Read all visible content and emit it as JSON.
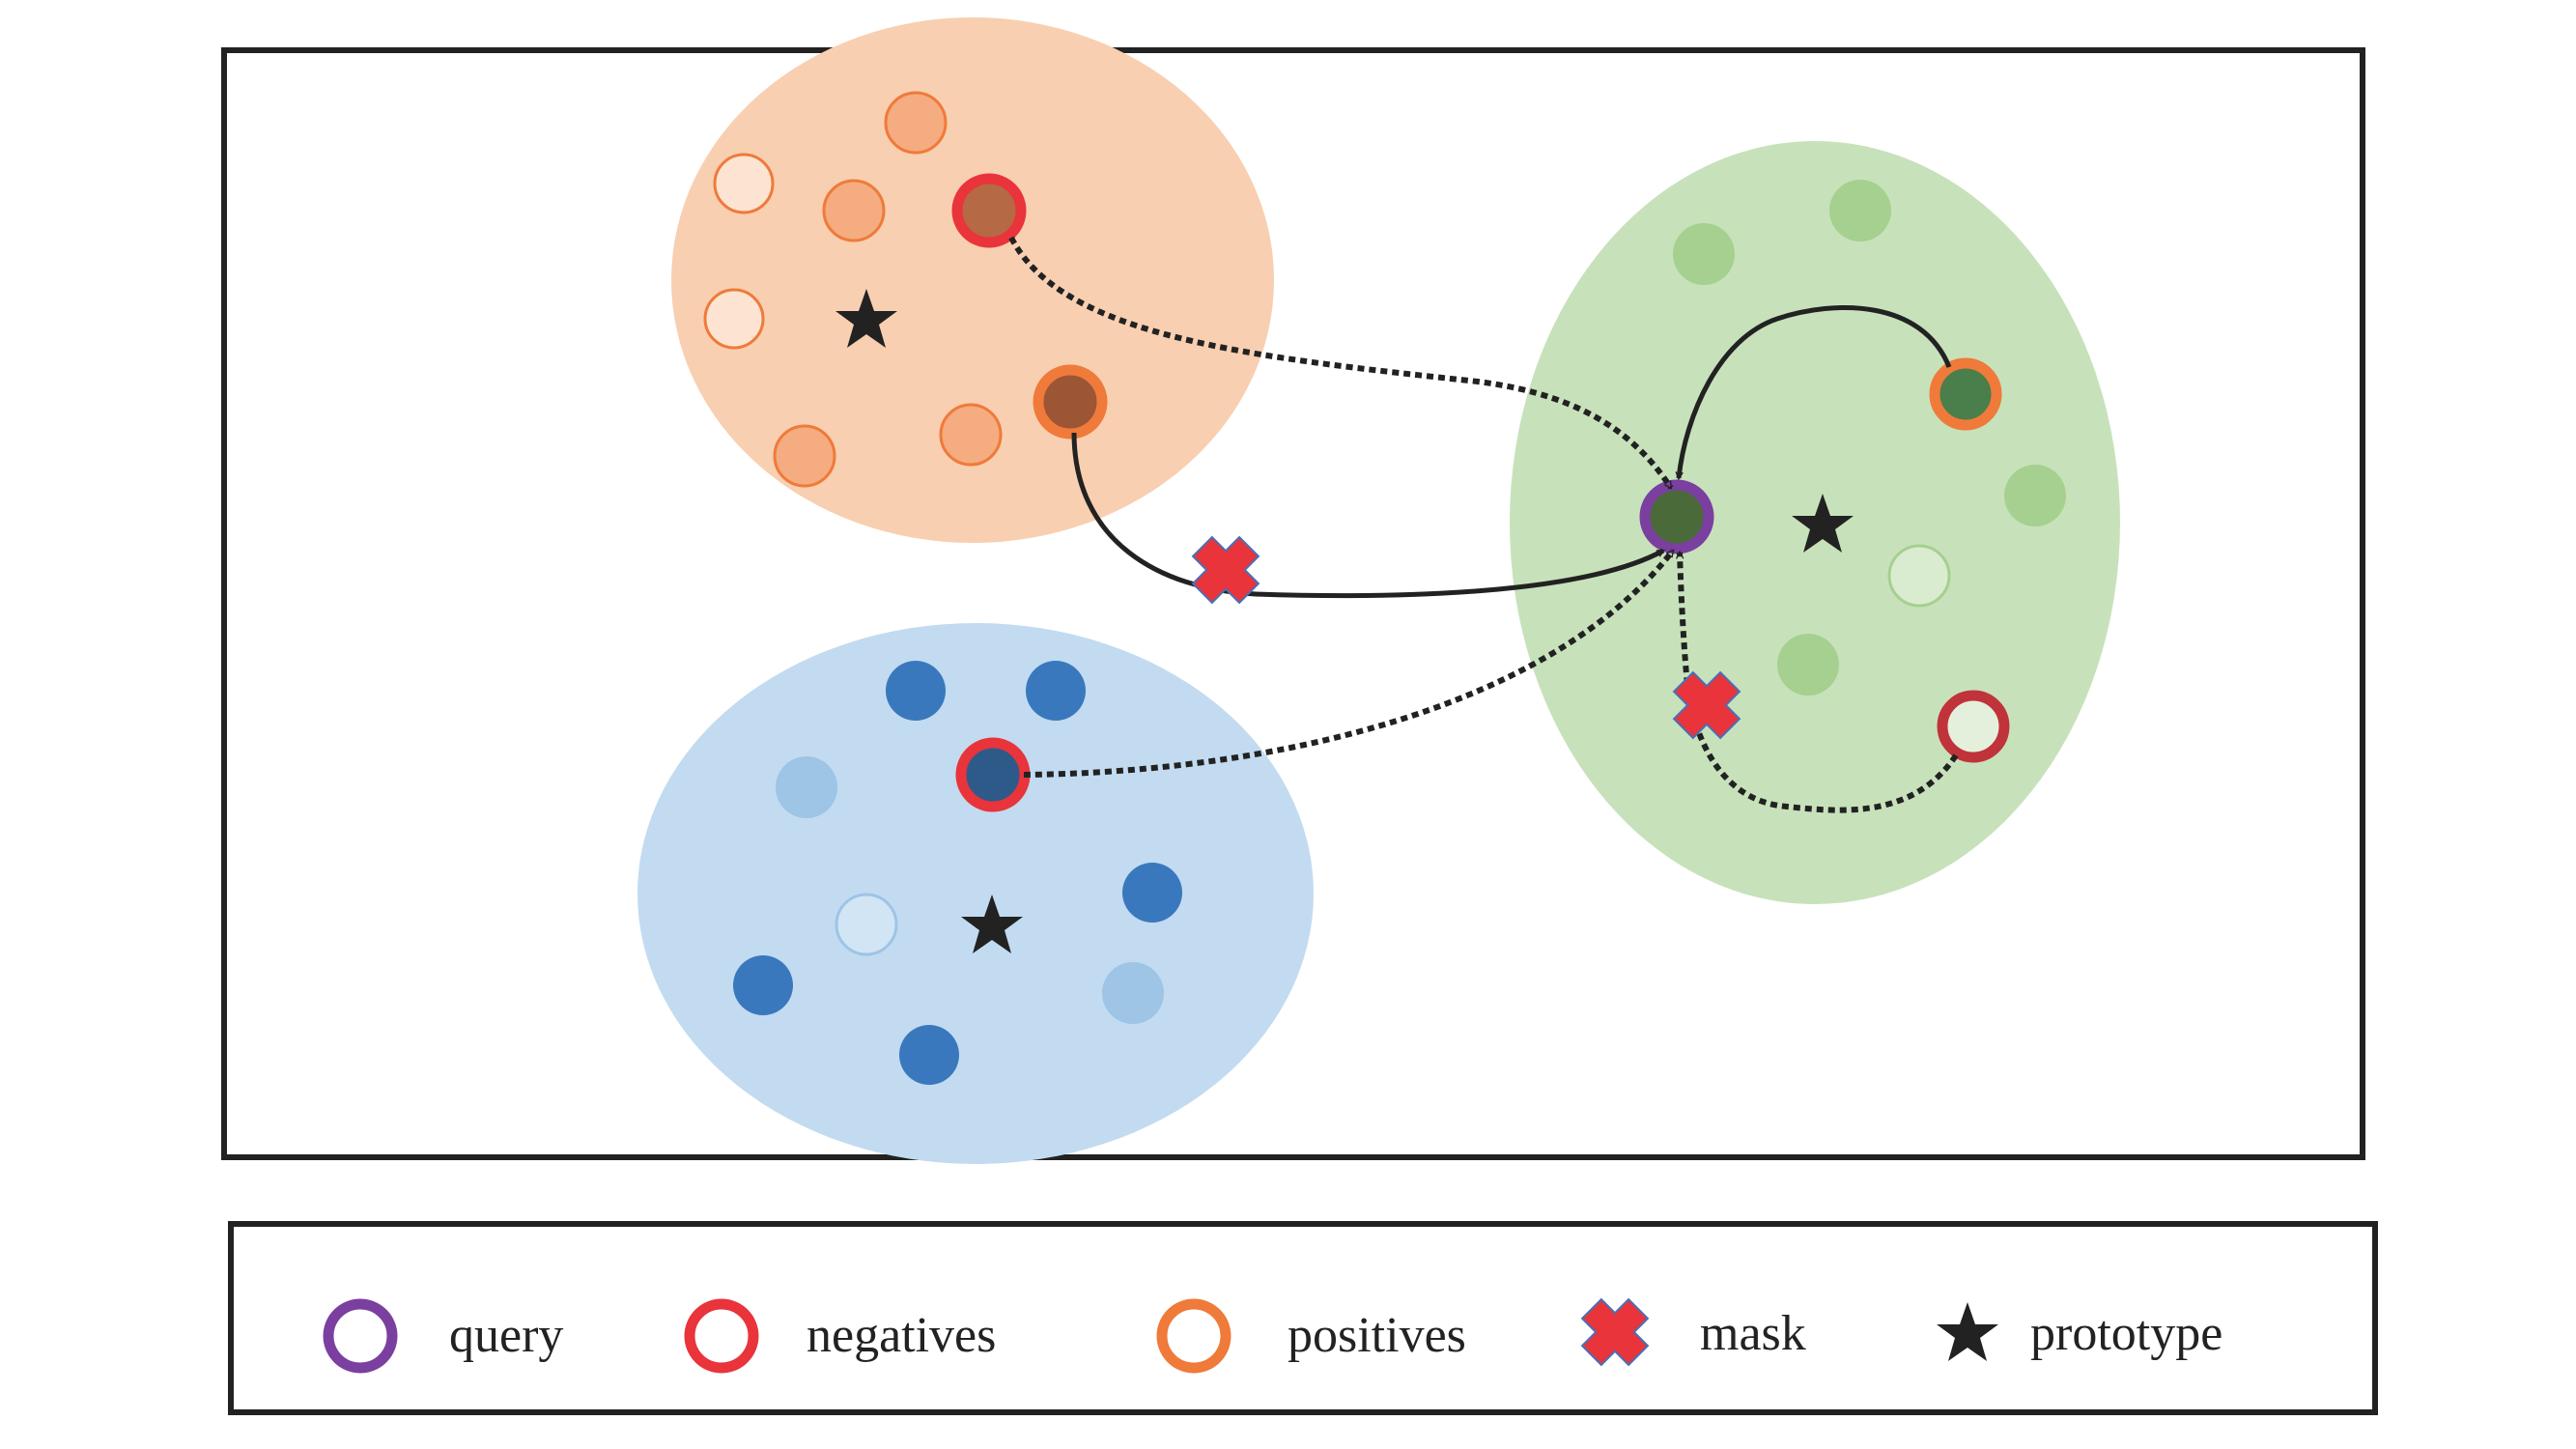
{
  "colors": {
    "orange_cluster": "#f8cfb1",
    "blue_cluster": "#c2dbf0",
    "green_cluster": "#c7e2bb",
    "query_ring": "#7b3fa0",
    "negative_ring": "#e8343a",
    "positive_ring": "#ef7a3a",
    "mask": "#e8343a",
    "prototype": "#222222",
    "frame": "#222222"
  },
  "icons": {
    "query": "ring-icon",
    "negatives": "ring-icon",
    "positives": "ring-icon",
    "mask": "cross-icon",
    "prototype": "star-icon"
  },
  "legend": {
    "query": "query",
    "negatives": "negatives",
    "positives": "positives",
    "mask": "mask",
    "prototype": "prototype"
  }
}
